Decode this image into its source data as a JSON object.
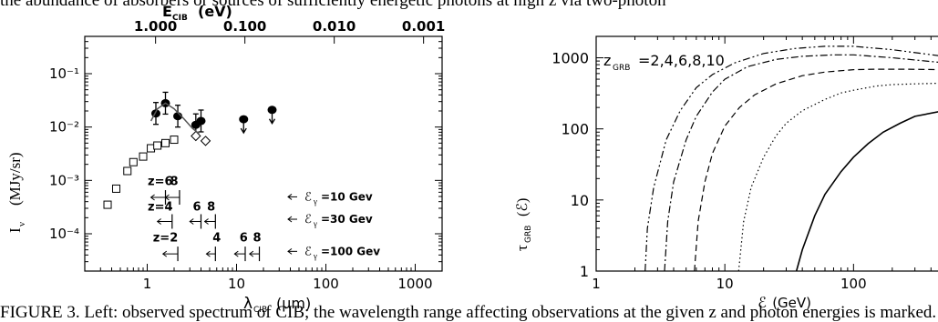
{
  "top_text": "the abundance of absorbers or sources of sufficiently energetic photons at high z via two-photon",
  "bottom_text": "FIGURE 3. Left: observed spectrum of CIB; the wavelength range affecting observations at the given z and photon energies is marked. Right: optical depth",
  "colors": {
    "ink": "#000000",
    "background": "#ffffff"
  },
  "chart_data": [
    {
      "type": "scatter",
      "xlabel": "λ",
      "xlabel_sub": "CIB",
      "xlabel_unit": "(μm)",
      "ylabel": "I",
      "ylabel_sub": "ν",
      "ylabel_unit": "(MJy/sr)",
      "x2label": "E",
      "x2label_sub": "CIB",
      "x2label_unit": "(eV)",
      "x_scale": "log",
      "y_scale": "log",
      "xlim": [
        0.2,
        2000
      ],
      "ylim": [
        2e-05,
        0.5
      ],
      "x_ticks": [
        {
          "v": 1,
          "l": "1"
        },
        {
          "v": 10,
          "l": "10"
        },
        {
          "v": 100,
          "l": "100"
        },
        {
          "v": 1000,
          "l": "1000"
        }
      ],
      "y_ticks": [
        {
          "v": 0.1,
          "l": "10⁻¹"
        },
        {
          "v": 0.01,
          "l": "10⁻²"
        },
        {
          "v": 0.001,
          "l": "10⁻³"
        },
        {
          "v": 0.0001,
          "l": "10⁻⁴"
        }
      ],
      "x2_ticks": [
        {
          "v": 1.24,
          "l": "1.000"
        },
        {
          "v": 12.4,
          "l": "0.100"
        },
        {
          "v": 124,
          "l": "0.010"
        },
        {
          "v": 1240,
          "l": "0.001"
        }
      ],
      "series": [
        {
          "marker": "filled-circle",
          "points": [
            [
              1.25,
              0.018
            ],
            [
              1.6,
              0.028
            ],
            [
              2.2,
              0.016
            ],
            [
              3.5,
              0.011
            ],
            [
              4.0,
              0.013
            ]
          ]
        },
        {
          "marker": "filled-circle-upper-limit",
          "points": [
            [
              12,
              0.014
            ],
            [
              25,
              0.021
            ]
          ]
        },
        {
          "marker": "open-square",
          "points": [
            [
              0.36,
              0.00035
            ],
            [
              0.45,
              0.0007
            ],
            [
              0.6,
              0.0015
            ],
            [
              0.7,
              0.0022
            ],
            [
              0.9,
              0.0028
            ],
            [
              1.1,
              0.004
            ],
            [
              1.3,
              0.0045
            ],
            [
              1.6,
              0.005
            ],
            [
              2.0,
              0.0058
            ]
          ]
        },
        {
          "marker": "open-diamond",
          "points": [
            [
              3.5,
              0.0068
            ],
            [
              4.5,
              0.0055
            ]
          ]
        },
        {
          "marker": "line",
          "points": [
            [
              1.1,
              0.013
            ],
            [
              1.3,
              0.022
            ],
            [
              1.6,
              0.028
            ],
            [
              2.0,
              0.022
            ],
            [
              2.6,
              0.014
            ],
            [
              3.2,
              0.0095
            ],
            [
              3.8,
              0.0075
            ]
          ]
        }
      ],
      "annotations": [
        {
          "text": "z=6",
          "x": 1.4,
          "y": 0.00082
        },
        {
          "text": "8",
          "x": 2.0,
          "y": 0.00082
        },
        {
          "text": "z=4",
          "x": 1.4,
          "y": 0.00027
        },
        {
          "text": "6",
          "x": 3.6,
          "y": 0.00027
        },
        {
          "text": "8",
          "x": 5.2,
          "y": 0.00027
        },
        {
          "text": "z=2",
          "x": 1.6,
          "y": 7.2e-05
        },
        {
          "text": "4",
          "x": 6.0,
          "y": 7.2e-05
        },
        {
          "text": "6",
          "x": 12.0,
          "y": 7.2e-05
        },
        {
          "text": "8",
          "x": 17.0,
          "y": 7.2e-05
        }
      ],
      "energy_labels": [
        {
          "sym": "ℰ",
          "sub": "γ",
          "text": "=10 Gev",
          "y": 0.00042
        },
        {
          "sym": "ℰ",
          "sub": "γ",
          "text": "=30 Gev",
          "y": 0.00016
        },
        {
          "sym": "ℰ",
          "sub": "γ",
          "text": "=100 Gev",
          "y": 4e-05
        }
      ],
      "ranges": [
        {
          "x1": 1.1,
          "x2": 1.6,
          "y": 0.00048
        },
        {
          "x1": 1.6,
          "x2": 2.3,
          "y": 0.00048
        },
        {
          "x1": 1.3,
          "x2": 1.9,
          "y": 0.00017
        },
        {
          "x1": 3.0,
          "x2": 4.0,
          "y": 0.00017
        },
        {
          "x1": 4.4,
          "x2": 5.8,
          "y": 0.00017
        },
        {
          "x1": 1.5,
          "x2": 2.2,
          "y": 4.2e-05
        },
        {
          "x1": 4.6,
          "x2": 5.8,
          "y": 4.2e-05
        },
        {
          "x1": 9.5,
          "x2": 12.5,
          "y": 4.2e-05
        },
        {
          "x1": 14.0,
          "x2": 18.0,
          "y": 4.2e-05
        }
      ]
    },
    {
      "type": "line",
      "xlabel": "ℰ",
      "xlabel_unit": "(GeV)",
      "ylabel": "τ",
      "ylabel_sub": "GRB",
      "ylabel_arg": "(ℰ)",
      "x_scale": "log",
      "y_scale": "log",
      "xlim": [
        1,
        500
      ],
      "ylim": [
        1,
        2000
      ],
      "x_ticks": [
        {
          "v": 1,
          "l": "1"
        },
        {
          "v": 10,
          "l": "10"
        },
        {
          "v": 100,
          "l": "100"
        }
      ],
      "y_ticks": [
        {
          "v": 1,
          "l": "1"
        },
        {
          "v": 10,
          "l": "10"
        },
        {
          "v": 100,
          "l": "100"
        },
        {
          "v": 1000,
          "l": "1000"
        }
      ],
      "legend": {
        "sym": "z",
        "sub": "GRB",
        "text": "=2,4,6,8,10"
      },
      "series": [
        {
          "dash": "solid",
          "x": [
            36,
            40,
            50,
            60,
            80,
            100,
            130,
            170,
            230,
            300,
            500
          ],
          "y": [
            1,
            2,
            6,
            12,
            25,
            40,
            62,
            90,
            120,
            150,
            180
          ]
        },
        {
          "dash": "dotted",
          "x": [
            12.8,
            14,
            16,
            20,
            25,
            30,
            40,
            60,
            80,
            100,
            150,
            200,
            300,
            500
          ],
          "y": [
            1,
            5,
            15,
            40,
            80,
            120,
            180,
            260,
            320,
            350,
            400,
            420,
            430,
            440
          ]
        },
        {
          "dash": "dashed",
          "x": [
            5.8,
            6.2,
            7,
            8,
            10,
            13,
            17,
            25,
            40,
            60,
            100,
            150,
            250,
            500
          ],
          "y": [
            1,
            5,
            18,
            45,
            110,
            200,
            300,
            430,
            560,
            630,
            680,
            690,
            690,
            680
          ]
        },
        {
          "dash": "dashdot",
          "x": [
            3.4,
            3.6,
            4,
            5,
            6,
            8,
            10,
            15,
            25,
            40,
            70,
            100,
            200,
            500
          ],
          "y": [
            1,
            5,
            18,
            70,
            150,
            330,
            500,
            750,
            950,
            1050,
            1100,
            1100,
            1000,
            850
          ]
        },
        {
          "dash": "dashdotdot",
          "x": [
            2.4,
            2.5,
            2.8,
            3.5,
            4.5,
            6,
            8,
            12,
            20,
            35,
            60,
            100,
            200,
            500
          ],
          "y": [
            1,
            4,
            15,
            70,
            180,
            380,
            580,
            850,
            1150,
            1350,
            1450,
            1450,
            1300,
            1050
          ]
        }
      ]
    }
  ]
}
